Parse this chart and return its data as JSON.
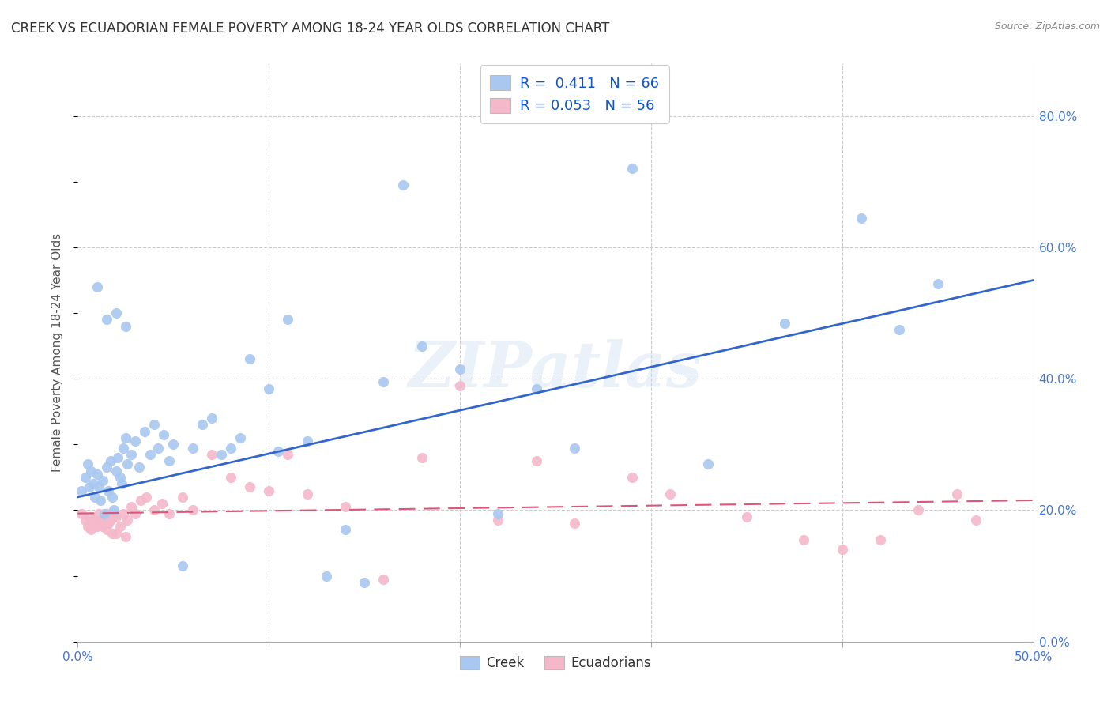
{
  "title": "CREEK VS ECUADORIAN FEMALE POVERTY AMONG 18-24 YEAR OLDS CORRELATION CHART",
  "source": "Source: ZipAtlas.com",
  "ylabel": "Female Poverty Among 18-24 Year Olds",
  "xlim": [
    0.0,
    0.5
  ],
  "ylim": [
    0.0,
    0.88
  ],
  "xtick_positions": [
    0.0,
    0.1,
    0.2,
    0.3,
    0.4,
    0.5
  ],
  "xticklabels": [
    "0.0%",
    "",
    "",
    "",
    "",
    "50.0%"
  ],
  "ytick_positions": [
    0.0,
    0.2,
    0.4,
    0.6,
    0.8
  ],
  "yticklabels_right": [
    "0.0%",
    "20.0%",
    "40.0%",
    "60.0%",
    "80.0%"
  ],
  "creek_color": "#a8c8f0",
  "ecuadorian_color": "#f5b8cb",
  "creek_line_color": "#3366cc",
  "ecuadorian_line_color": "#dd5577",
  "background_color": "#ffffff",
  "grid_color": "#cccccc",
  "creek_R": 0.411,
  "creek_N": 66,
  "ecuadorian_R": 0.053,
  "ecuadorian_N": 56,
  "watermark": "ZIPatlas",
  "creek_x": [
    0.002,
    0.004,
    0.005,
    0.006,
    0.007,
    0.008,
    0.009,
    0.01,
    0.011,
    0.012,
    0.013,
    0.014,
    0.015,
    0.016,
    0.017,
    0.018,
    0.019,
    0.02,
    0.021,
    0.022,
    0.023,
    0.024,
    0.025,
    0.026,
    0.028,
    0.03,
    0.032,
    0.035,
    0.038,
    0.04,
    0.042,
    0.045,
    0.048,
    0.05,
    0.055,
    0.06,
    0.065,
    0.07,
    0.075,
    0.08,
    0.085,
    0.09,
    0.1,
    0.105,
    0.11,
    0.12,
    0.13,
    0.14,
    0.15,
    0.16,
    0.17,
    0.18,
    0.2,
    0.22,
    0.24,
    0.26,
    0.29,
    0.33,
    0.37,
    0.41,
    0.43,
    0.45,
    0.01,
    0.015,
    0.02,
    0.025
  ],
  "creek_y": [
    0.23,
    0.25,
    0.27,
    0.235,
    0.26,
    0.24,
    0.22,
    0.255,
    0.235,
    0.215,
    0.245,
    0.195,
    0.265,
    0.23,
    0.275,
    0.22,
    0.2,
    0.26,
    0.28,
    0.25,
    0.24,
    0.295,
    0.31,
    0.27,
    0.285,
    0.305,
    0.265,
    0.32,
    0.285,
    0.33,
    0.295,
    0.315,
    0.275,
    0.3,
    0.115,
    0.295,
    0.33,
    0.34,
    0.285,
    0.295,
    0.31,
    0.43,
    0.385,
    0.29,
    0.49,
    0.305,
    0.1,
    0.17,
    0.09,
    0.395,
    0.695,
    0.45,
    0.415,
    0.195,
    0.385,
    0.295,
    0.72,
    0.27,
    0.485,
    0.645,
    0.475,
    0.545,
    0.54,
    0.49,
    0.5,
    0.48
  ],
  "ecuadorian_x": [
    0.002,
    0.004,
    0.005,
    0.006,
    0.007,
    0.008,
    0.009,
    0.01,
    0.011,
    0.012,
    0.013,
    0.014,
    0.015,
    0.016,
    0.017,
    0.018,
    0.019,
    0.02,
    0.022,
    0.024,
    0.026,
    0.028,
    0.03,
    0.033,
    0.036,
    0.04,
    0.044,
    0.048,
    0.055,
    0.06,
    0.07,
    0.08,
    0.09,
    0.1,
    0.11,
    0.12,
    0.14,
    0.16,
    0.18,
    0.2,
    0.22,
    0.24,
    0.26,
    0.29,
    0.31,
    0.35,
    0.38,
    0.4,
    0.42,
    0.44,
    0.46,
    0.47,
    0.01,
    0.015,
    0.02,
    0.025
  ],
  "ecuadorian_y": [
    0.195,
    0.185,
    0.175,
    0.19,
    0.17,
    0.185,
    0.175,
    0.18,
    0.195,
    0.185,
    0.175,
    0.19,
    0.195,
    0.18,
    0.185,
    0.165,
    0.195,
    0.19,
    0.175,
    0.195,
    0.185,
    0.205,
    0.195,
    0.215,
    0.22,
    0.2,
    0.21,
    0.195,
    0.22,
    0.2,
    0.285,
    0.25,
    0.235,
    0.23,
    0.285,
    0.225,
    0.205,
    0.095,
    0.28,
    0.39,
    0.185,
    0.275,
    0.18,
    0.25,
    0.225,
    0.19,
    0.155,
    0.14,
    0.155,
    0.2,
    0.225,
    0.185,
    0.175,
    0.17,
    0.165,
    0.16
  ]
}
